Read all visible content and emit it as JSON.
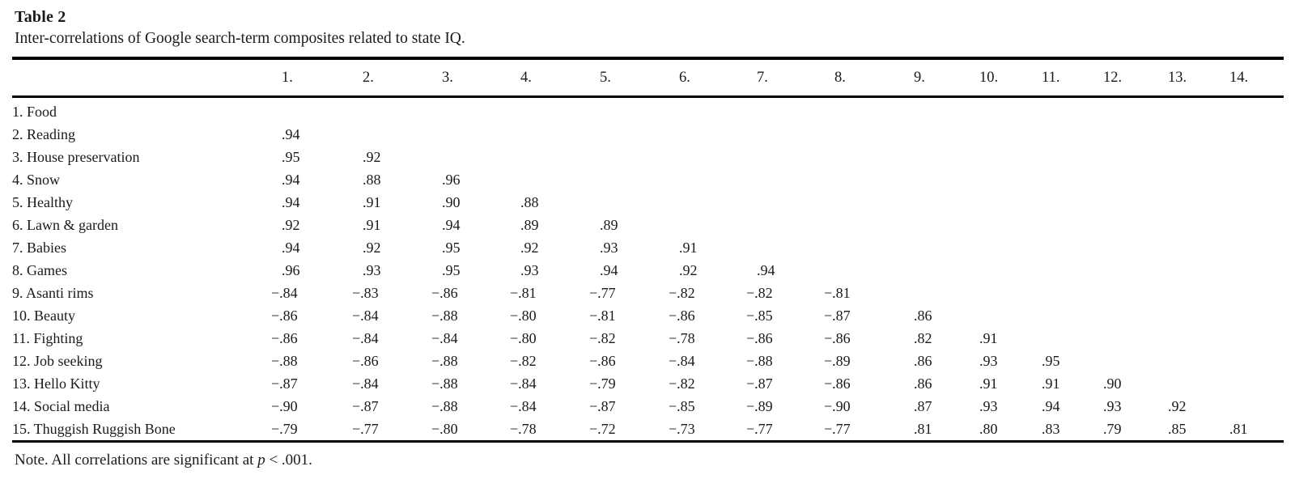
{
  "header": {
    "title": "Table 2",
    "caption": "Inter-correlations of Google search-term composites related to state IQ."
  },
  "chart_data": {
    "type": "table",
    "columns": [
      "1.",
      "2.",
      "3.",
      "4.",
      "5.",
      "6.",
      "7.",
      "8.",
      "9.",
      "10.",
      "11.",
      "12.",
      "13.",
      "14."
    ],
    "rows": [
      {
        "label": "1. Food",
        "values": []
      },
      {
        "label": "2. Reading",
        "values": [
          ".94"
        ]
      },
      {
        "label": "3. House preservation",
        "values": [
          ".95",
          ".92"
        ]
      },
      {
        "label": "4. Snow",
        "values": [
          ".94",
          ".88",
          ".96"
        ]
      },
      {
        "label": "5. Healthy",
        "values": [
          ".94",
          ".91",
          ".90",
          ".88"
        ]
      },
      {
        "label": "6. Lawn & garden",
        "values": [
          ".92",
          ".91",
          ".94",
          ".89",
          ".89"
        ]
      },
      {
        "label": "7. Babies",
        "values": [
          ".94",
          ".92",
          ".95",
          ".92",
          ".93",
          ".91"
        ]
      },
      {
        "label": "8. Games",
        "values": [
          ".96",
          ".93",
          ".95",
          ".93",
          ".94",
          ".92",
          ".94"
        ]
      },
      {
        "label": "9. Asanti rims",
        "values": [
          "−.84",
          "−.83",
          "−.86",
          "−.81",
          "−.77",
          "−.82",
          "−.82",
          "−.81"
        ]
      },
      {
        "label": "10. Beauty",
        "values": [
          "−.86",
          "−.84",
          "−.88",
          "−.80",
          "−.81",
          "−.86",
          "−.85",
          "−.87",
          ".86"
        ]
      },
      {
        "label": "11. Fighting",
        "values": [
          "−.86",
          "−.84",
          "−.84",
          "−.80",
          "−.82",
          "−.78",
          "−.86",
          "−.86",
          ".82",
          ".91"
        ]
      },
      {
        "label": "12. Job seeking",
        "values": [
          "−.88",
          "−.86",
          "−.88",
          "−.82",
          "−.86",
          "−.84",
          "−.88",
          "−.89",
          ".86",
          ".93",
          ".95"
        ]
      },
      {
        "label": "13. Hello Kitty",
        "values": [
          "−.87",
          "−.84",
          "−.88",
          "−.84",
          "−.79",
          "−.82",
          "−.87",
          "−.86",
          ".86",
          ".91",
          ".91",
          ".90"
        ]
      },
      {
        "label": "14. Social media",
        "values": [
          "−.90",
          "−.87",
          "−.88",
          "−.84",
          "−.87",
          "−.85",
          "−.89",
          "−.90",
          ".87",
          ".93",
          ".94",
          ".93",
          ".92"
        ]
      },
      {
        "label": "15. Thuggish Ruggish Bone",
        "values": [
          "−.79",
          "−.77",
          "−.80",
          "−.78",
          "−.72",
          "−.73",
          "−.77",
          "−.77",
          ".81",
          ".80",
          ".83",
          ".79",
          ".85",
          ".81"
        ]
      }
    ]
  },
  "note": {
    "prefix": "Note. All correlations are significant at ",
    "italic_term": "p",
    "suffix": " < .001."
  }
}
